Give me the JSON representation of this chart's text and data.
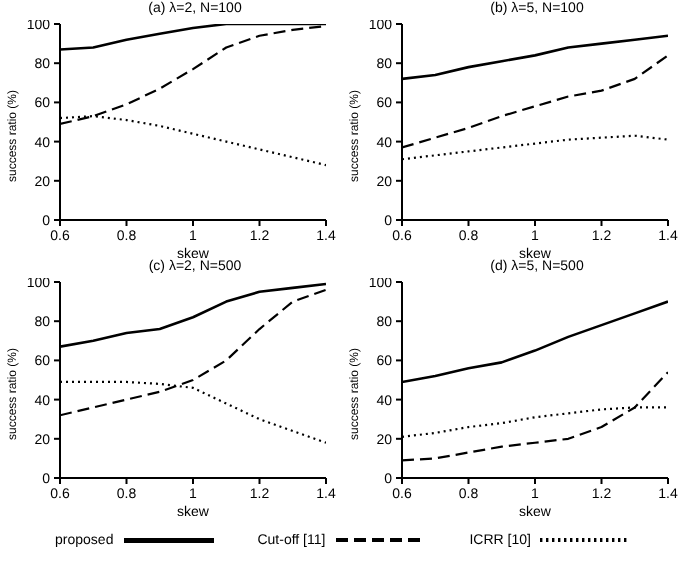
{
  "chart_data": [
    {
      "type": "line",
      "title": "(a) λ=2, N=100",
      "xlabel": "skew",
      "ylabel": "success ratio (%)",
      "x": [
        0.6,
        0.7,
        0.8,
        0.9,
        1.0,
        1.1,
        1.2,
        1.3,
        1.4
      ],
      "xlim": [
        0.6,
        1.4
      ],
      "xticks": [
        0.6,
        0.8,
        1,
        1.2,
        1.4
      ],
      "ylim": [
        0,
        100
      ],
      "yticks": [
        0,
        20,
        40,
        60,
        80,
        100
      ],
      "grid": false,
      "legend": false,
      "marker": "none",
      "series": [
        {
          "color": "#000000",
          "line_style": "solid",
          "values": [
            87,
            88,
            92,
            95,
            98,
            100,
            100,
            100,
            100
          ]
        },
        {
          "color": "#000000",
          "line_style": "dashed",
          "values": [
            49,
            53,
            59,
            67,
            77,
            88,
            94,
            97,
            99
          ]
        },
        {
          "color": "#000000",
          "line_style": "dotted",
          "values": [
            52,
            53,
            51,
            48,
            44,
            40,
            36,
            32,
            28
          ]
        }
      ]
    },
    {
      "type": "line",
      "title": "(b) λ=5, N=100",
      "xlabel": "skew",
      "ylabel": "success ratio (%)",
      "x": [
        0.6,
        0.7,
        0.8,
        0.9,
        1.0,
        1.1,
        1.2,
        1.3,
        1.4
      ],
      "xlim": [
        0.6,
        1.4
      ],
      "xticks": [
        0.6,
        0.8,
        1,
        1.2,
        1.4
      ],
      "ylim": [
        0,
        100
      ],
      "yticks": [
        0,
        20,
        40,
        60,
        80,
        100
      ],
      "grid": false,
      "legend": false,
      "marker": "none",
      "series": [
        {
          "color": "#000000",
          "line_style": "solid",
          "values": [
            72,
            74,
            78,
            81,
            84,
            88,
            90,
            92,
            94
          ]
        },
        {
          "color": "#000000",
          "line_style": "dashed",
          "values": [
            37,
            42,
            47,
            53,
            58,
            63,
            66,
            72,
            84
          ]
        },
        {
          "color": "#000000",
          "line_style": "dotted",
          "values": [
            31,
            33,
            35,
            37,
            39,
            41,
            42,
            43,
            41
          ]
        }
      ]
    },
    {
      "type": "line",
      "title": "(c) λ=2, N=500",
      "xlabel": "skew",
      "ylabel": "success ratio (%)",
      "x": [
        0.6,
        0.7,
        0.8,
        0.9,
        1.0,
        1.1,
        1.2,
        1.3,
        1.4
      ],
      "xlim": [
        0.6,
        1.4
      ],
      "xticks": [
        0.6,
        0.8,
        1,
        1.2,
        1.4
      ],
      "ylim": [
        0,
        100
      ],
      "yticks": [
        0,
        20,
        40,
        60,
        80,
        100
      ],
      "grid": false,
      "legend": false,
      "marker": "none",
      "series": [
        {
          "color": "#000000",
          "line_style": "solid",
          "values": [
            67,
            70,
            74,
            76,
            82,
            90,
            95,
            97,
            99
          ]
        },
        {
          "color": "#000000",
          "line_style": "dashed",
          "values": [
            32,
            36,
            40,
            44,
            50,
            60,
            76,
            90,
            96
          ]
        },
        {
          "color": "#000000",
          "line_style": "dotted",
          "values": [
            49,
            49,
            49,
            48,
            46,
            38,
            30,
            24,
            18
          ]
        }
      ]
    },
    {
      "type": "line",
      "title": "(d) λ=5, N=500",
      "xlabel": "skew",
      "ylabel": "success ratio (%)",
      "x": [
        0.6,
        0.7,
        0.8,
        0.9,
        1.0,
        1.1,
        1.2,
        1.3,
        1.4
      ],
      "xlim": [
        0.6,
        1.4
      ],
      "xticks": [
        0.6,
        0.8,
        1,
        1.2,
        1.4
      ],
      "ylim": [
        0,
        100
      ],
      "yticks": [
        0,
        20,
        40,
        60,
        80,
        100
      ],
      "grid": false,
      "legend": "bottom",
      "marker": "none",
      "series": [
        {
          "name": "proposed",
          "color": "#000000",
          "line_style": "solid",
          "values": [
            49,
            52,
            56,
            59,
            65,
            72,
            78,
            84,
            90
          ]
        },
        {
          "name": "Cut-off [11]",
          "color": "#000000",
          "line_style": "dashed",
          "values": [
            9,
            10,
            13,
            16,
            18,
            20,
            26,
            36,
            54
          ]
        },
        {
          "name": "ICRR [10]",
          "color": "#000000",
          "line_style": "dotted",
          "values": [
            21,
            23,
            26,
            28,
            31,
            33,
            35,
            36,
            36
          ]
        }
      ]
    }
  ]
}
